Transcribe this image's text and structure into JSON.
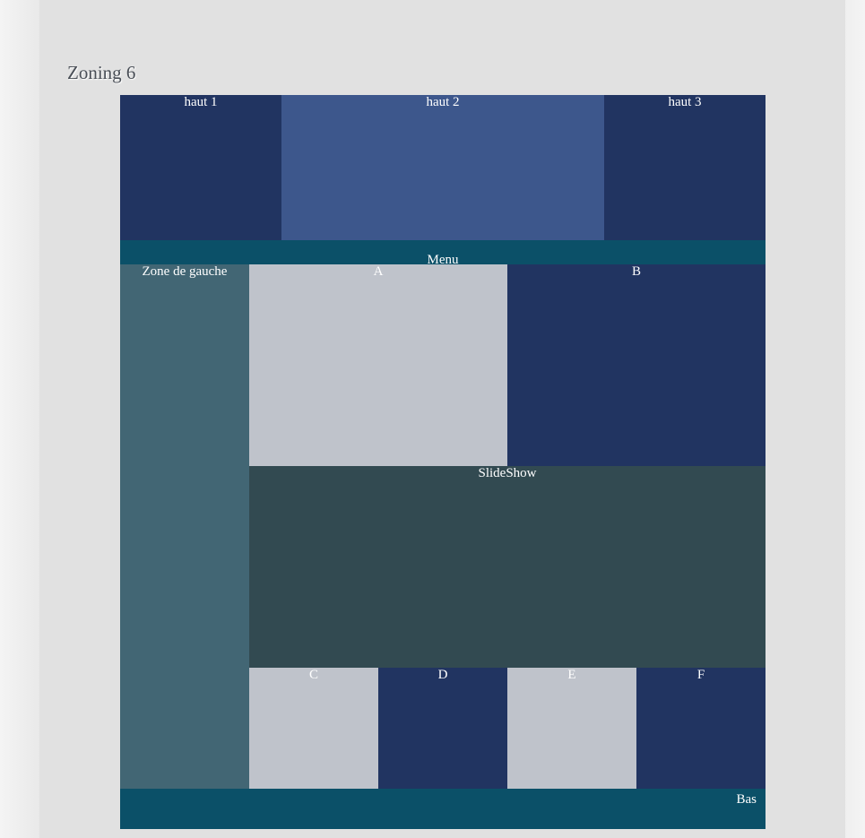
{
  "page": {
    "title": "Zoning 6"
  },
  "zones": {
    "haut1": "haut 1",
    "haut2": "haut 2",
    "haut3": "haut 3",
    "menu": "Menu",
    "gauche": "Zone de gauche",
    "a": "A",
    "b": "B",
    "slideshow": "SlideShow",
    "c": "C",
    "d": "D",
    "e": "E",
    "f": "F",
    "bas": "Bas"
  },
  "colors": {
    "navy": "#213461",
    "blue": "#3d578c",
    "teal": "#0b5068",
    "slate": "#426674",
    "gray": "#bfc3cb",
    "dark": "#324a51",
    "background": "#e1e1e1"
  }
}
